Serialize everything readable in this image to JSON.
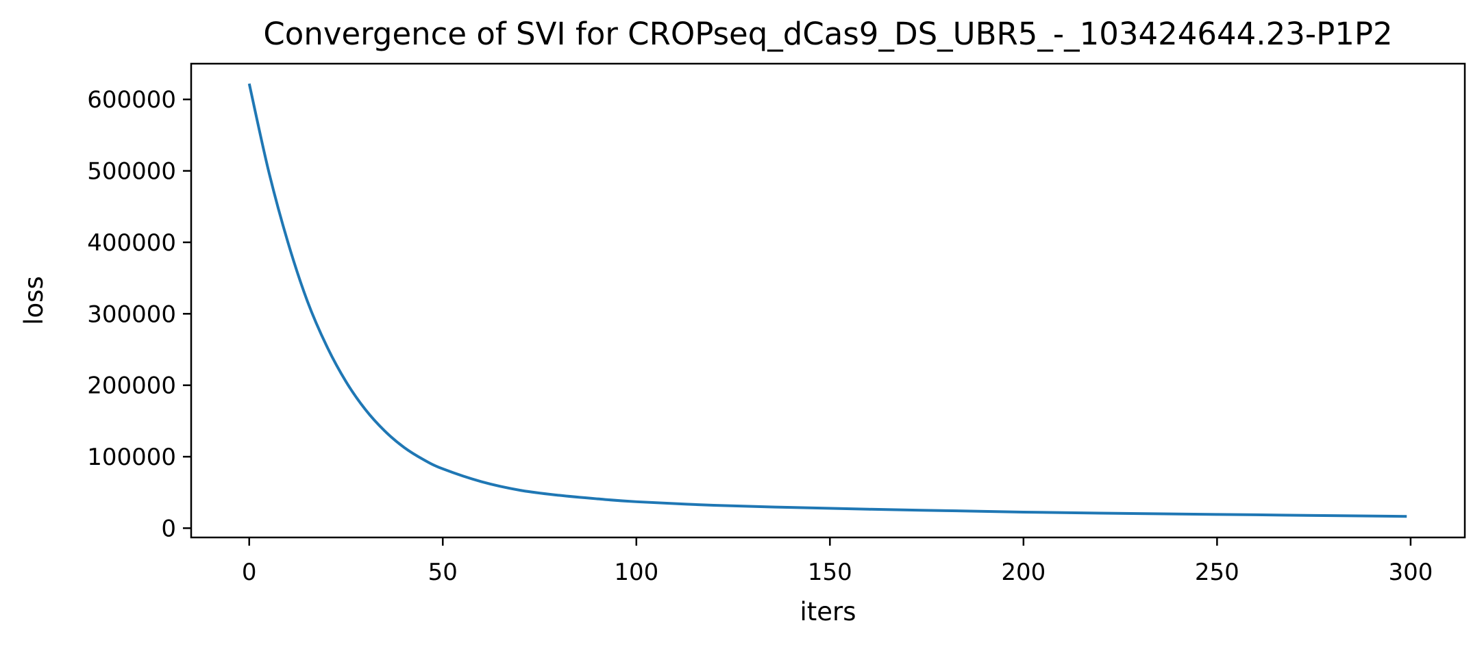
{
  "chart_data": {
    "type": "line",
    "title": "Convergence of SVI for CROPseq_dCas9_DS_UBR5_-_103424644.23-P1P2",
    "xlabel": "iters",
    "ylabel": "loss",
    "xlim": [
      -15,
      314
    ],
    "ylim": [
      -13000,
      650000
    ],
    "xticks": [
      0,
      50,
      100,
      150,
      200,
      250,
      300
    ],
    "xtick_labels": [
      "0",
      "50",
      "100",
      "150",
      "200",
      "250",
      "300"
    ],
    "yticks": [
      0,
      100000,
      200000,
      300000,
      400000,
      500000,
      600000
    ],
    "ytick_labels": [
      "0",
      "100000",
      "200000",
      "300000",
      "400000",
      "500000",
      "600000"
    ],
    "grid": false,
    "series": [
      {
        "color": "#1f77b4",
        "x": [
          0,
          5,
          10,
          15,
          20,
          25,
          30,
          35,
          40,
          45,
          50,
          60,
          70,
          80,
          90,
          100,
          120,
          140,
          160,
          180,
          200,
          220,
          240,
          260,
          280,
          299
        ],
        "y": [
          622000,
          500000,
          400000,
          318000,
          255000,
          205000,
          166000,
          136000,
          113000,
          96000,
          83000,
          65000,
          53000,
          46000,
          41000,
          37000,
          32000,
          29000,
          26500,
          24500,
          22500,
          21000,
          19800,
          18700,
          17500,
          16500
        ]
      }
    ]
  }
}
